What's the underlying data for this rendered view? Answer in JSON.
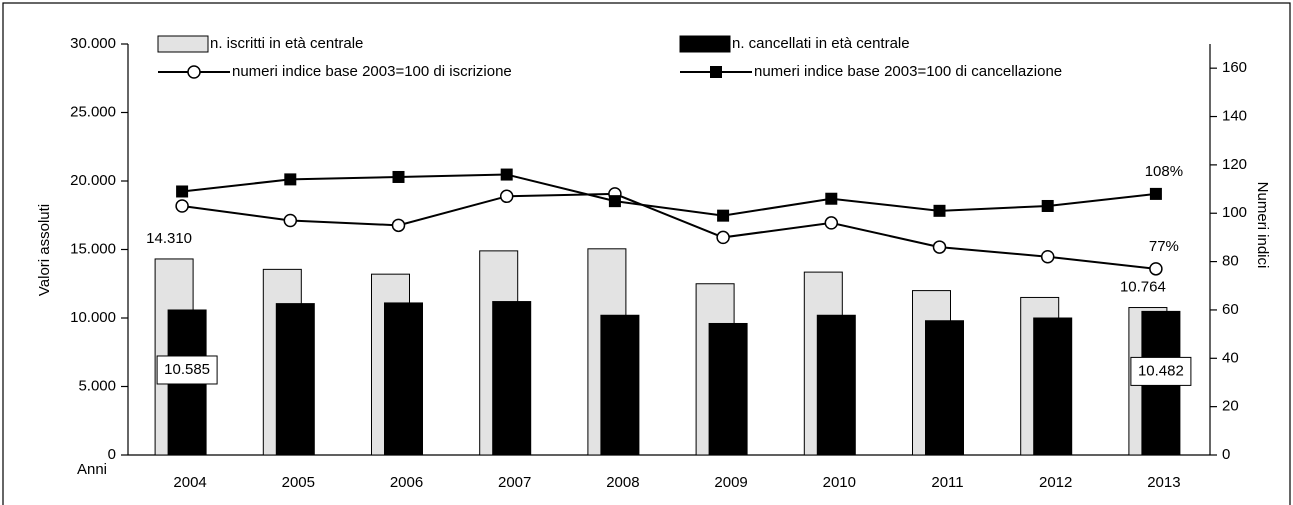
{
  "chart_data": {
    "type": "bar-line",
    "xlabel": "Anni",
    "ylabel": "Valori assoluti",
    "y2label": "Numeri indici",
    "categories": [
      "2004",
      "2005",
      "2006",
      "2007",
      "2008",
      "2009",
      "2010",
      "2011",
      "2012",
      "2013"
    ],
    "series": [
      {
        "name": "n. iscritti in età centrale",
        "type": "bar",
        "color": "#e3e3e3",
        "values": [
          14310,
          13550,
          13200,
          14900,
          15050,
          12500,
          13350,
          12000,
          11500,
          10764
        ],
        "value_labels": [
          "14.310",
          null,
          null,
          null,
          null,
          null,
          null,
          null,
          null,
          "10.764"
        ]
      },
      {
        "name": "n. cancellati in età centrale",
        "type": "bar",
        "color": "#000000",
        "values": [
          10585,
          11050,
          11100,
          11200,
          10200,
          9600,
          10200,
          9800,
          10000,
          10482
        ],
        "value_labels": [
          "10.585",
          null,
          null,
          null,
          null,
          null,
          null,
          null,
          null,
          "10.482"
        ]
      },
      {
        "name": "numeri indice base 2003=100 di iscrizione",
        "type": "line",
        "axis": "y2",
        "marker": "circle",
        "color": "#000000",
        "values": [
          103,
          97,
          95,
          107,
          108,
          90,
          96,
          86,
          82,
          77
        ],
        "value_labels": [
          null,
          null,
          null,
          null,
          null,
          null,
          null,
          null,
          null,
          "77%"
        ]
      },
      {
        "name": "numeri indice base 2003=100 di cancellazione",
        "type": "line",
        "axis": "y2",
        "marker": "square",
        "color": "#000000",
        "values": [
          109,
          114,
          115,
          116,
          105,
          99,
          106,
          101,
          103,
          108
        ],
        "value_labels": [
          null,
          null,
          null,
          null,
          null,
          null,
          null,
          null,
          null,
          "108%"
        ]
      }
    ],
    "ylim": [
      0,
      30000
    ],
    "yticks": [
      {
        "value": 0,
        "label": "0"
      },
      {
        "value": 5000,
        "label": "5.000"
      },
      {
        "value": 10000,
        "label": "10.000"
      },
      {
        "value": 15000,
        "label": "15.000"
      },
      {
        "value": 20000,
        "label": "20.000"
      },
      {
        "value": 25000,
        "label": "25.000"
      },
      {
        "value": 30000,
        "label": "30.000"
      }
    ],
    "y2lim": [
      0,
      170
    ],
    "y2ticks": [
      0,
      20,
      40,
      60,
      80,
      100,
      120,
      140,
      160
    ]
  }
}
